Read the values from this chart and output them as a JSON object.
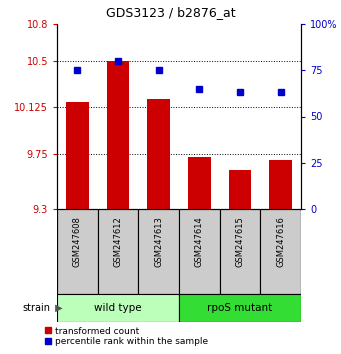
{
  "title": "GDS3123 / b2876_at",
  "samples": [
    "GSM247608",
    "GSM247612",
    "GSM247613",
    "GSM247614",
    "GSM247615",
    "GSM247616"
  ],
  "red_values": [
    10.17,
    10.5,
    10.19,
    9.72,
    9.62,
    9.7
  ],
  "blue_values": [
    75,
    80,
    75,
    65,
    63,
    63
  ],
  "ylim_left": [
    9.3,
    10.8
  ],
  "ylim_right": [
    0,
    100
  ],
  "yticks_left": [
    9.3,
    9.75,
    10.125,
    10.5,
    10.8
  ],
  "ytick_labels_left": [
    "9.3",
    "9.75",
    "10.125",
    "10.5",
    "10.8"
  ],
  "yticks_right": [
    0,
    25,
    50,
    75,
    100
  ],
  "ytick_labels_right": [
    "0",
    "25",
    "50",
    "75",
    "100%"
  ],
  "grid_yticks": [
    9.75,
    10.125,
    10.5
  ],
  "bar_color": "#cc0000",
  "dot_color": "#0000cc",
  "bar_bottom": 9.3,
  "wildtype_color": "#bbffbb",
  "mutant_color": "#33dd33",
  "sample_bg_color": "#cccccc",
  "strain_label": "strain",
  "legend_red": "transformed count",
  "legend_blue": "percentile rank within the sample",
  "tick_color_left": "#cc0000",
  "tick_color_right": "#0000cc",
  "bar_width": 0.55,
  "dot_size": 5,
  "title_fontsize": 9,
  "tick_fontsize": 7,
  "sample_fontsize": 6,
  "group_fontsize": 7.5,
  "legend_fontsize": 6.5,
  "strain_fontsize": 7
}
